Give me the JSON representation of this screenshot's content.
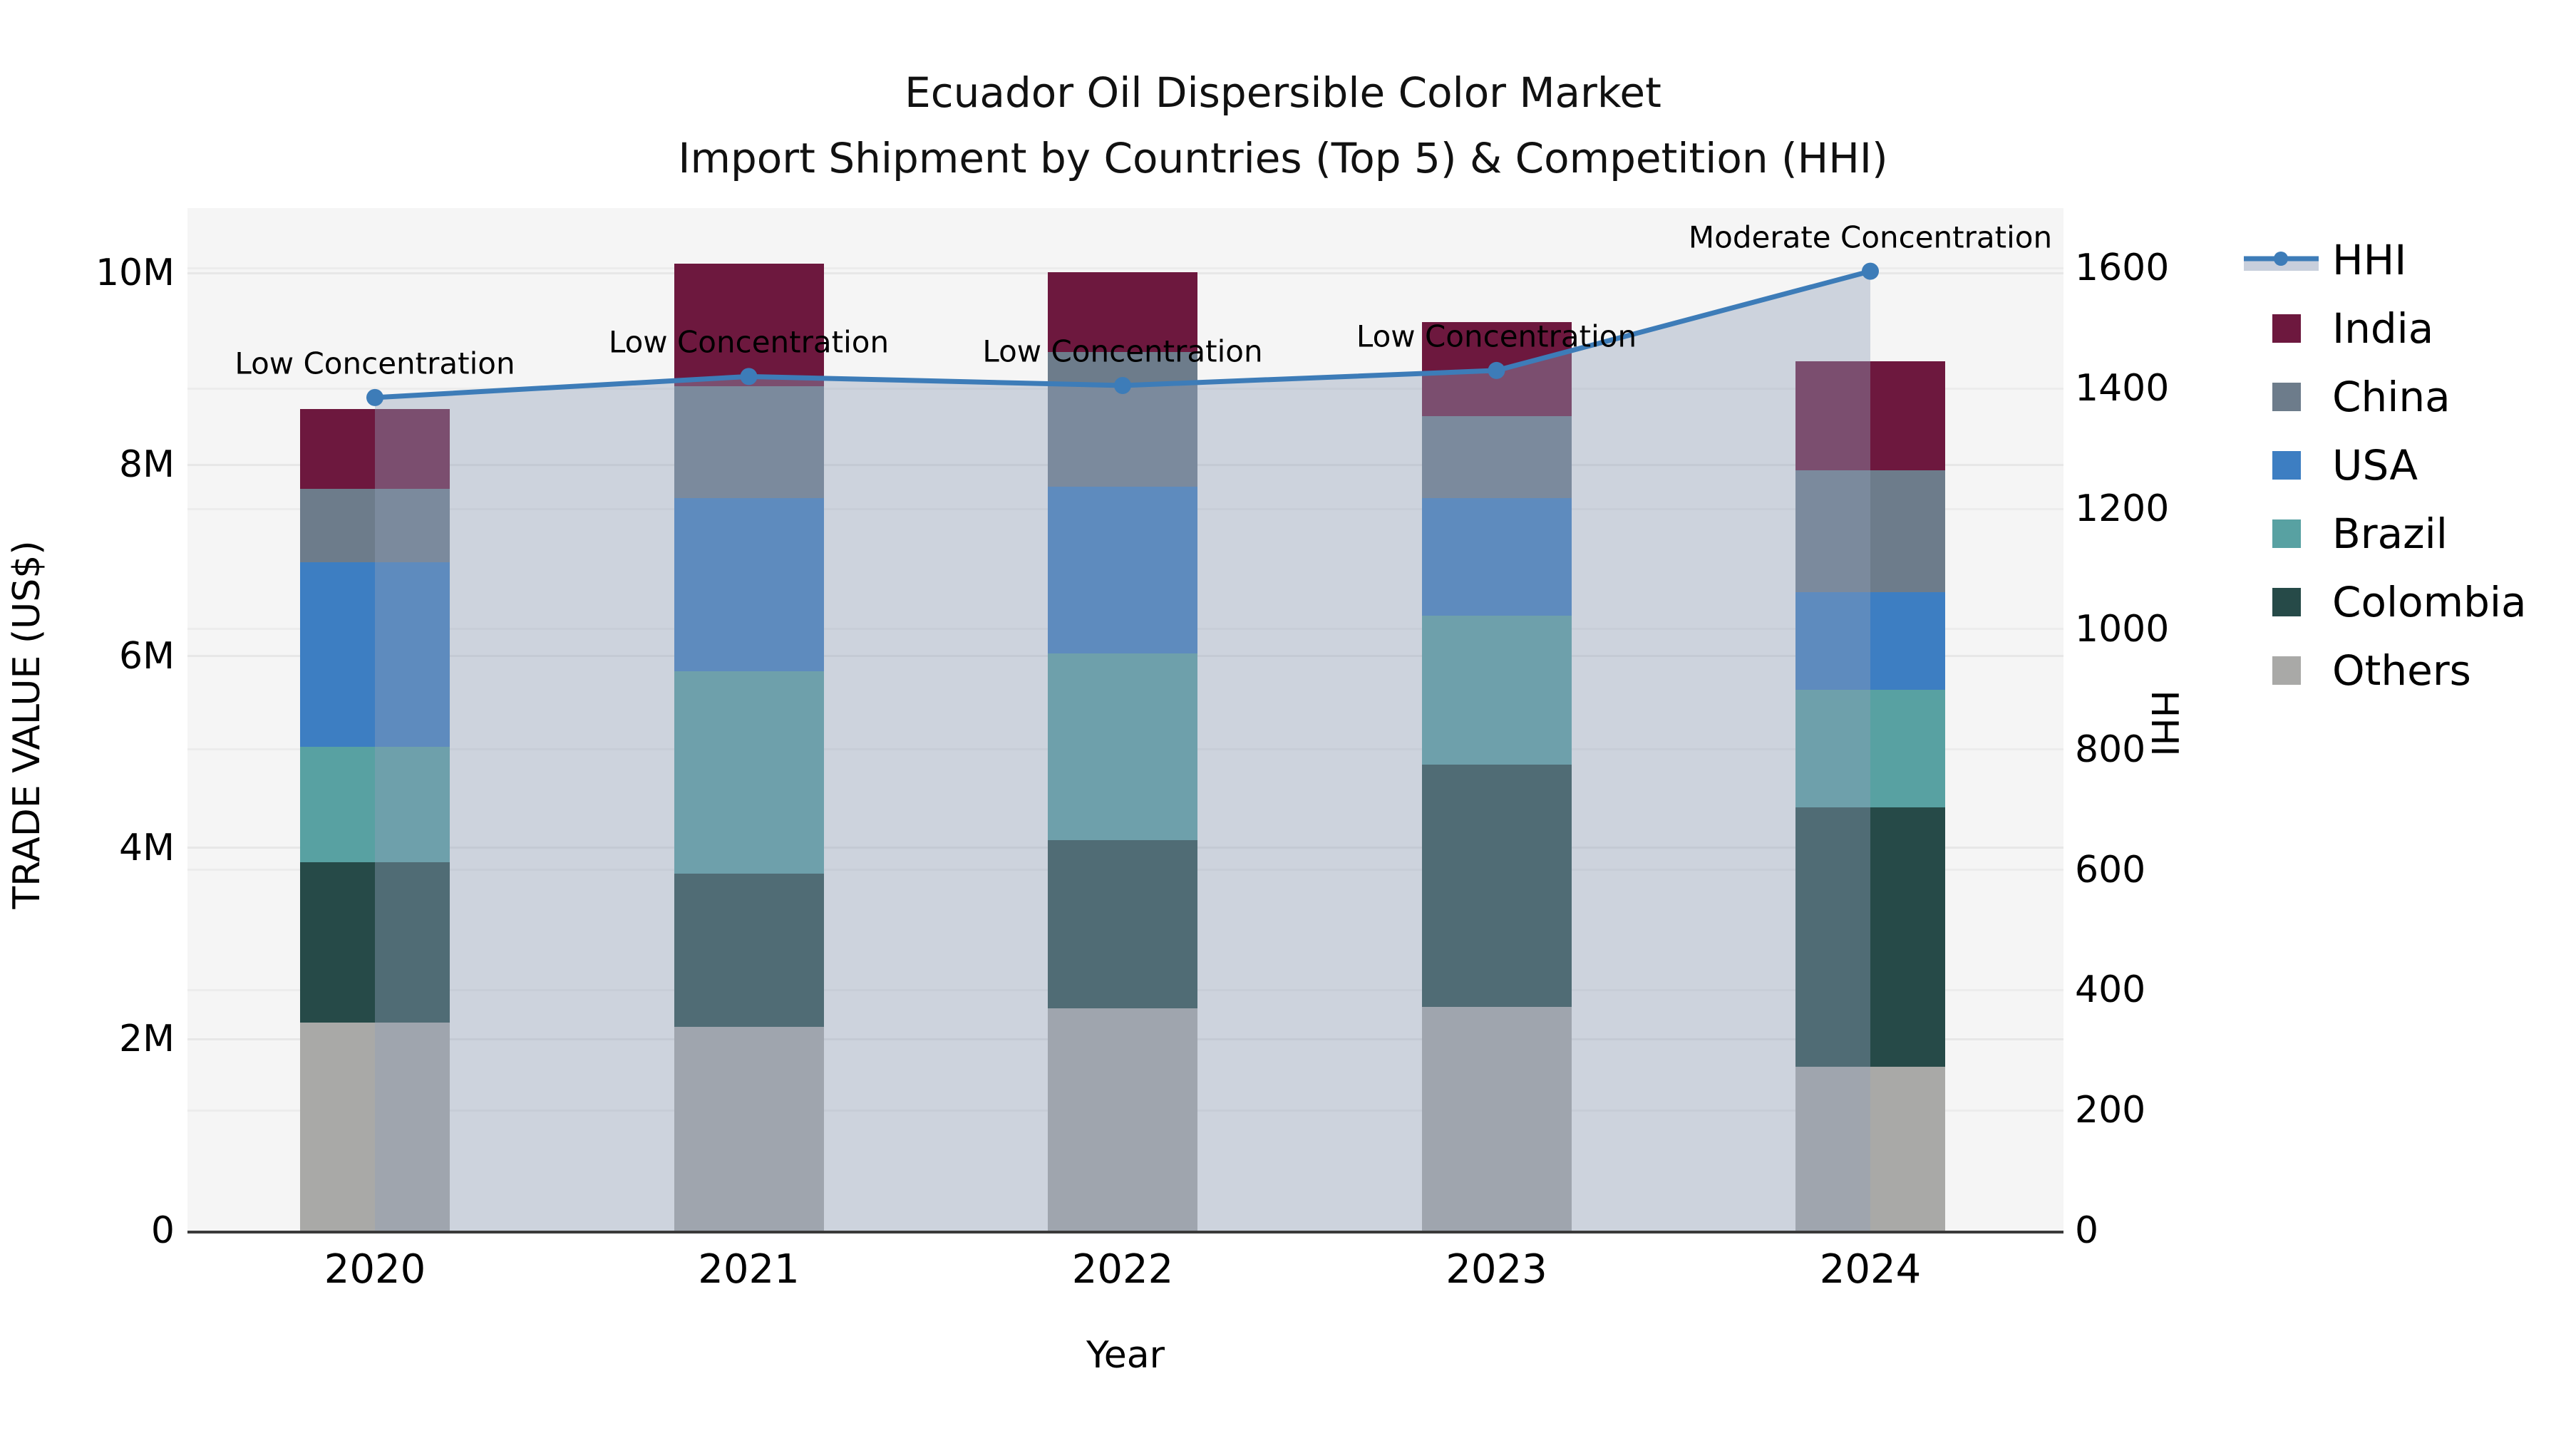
{
  "title": {
    "line1": "Ecuador Oil Dispersible Color Market",
    "line2": "Import Shipment by Countries (Top 5) & Competition (HHI)"
  },
  "axes": {
    "x": {
      "label": "Year",
      "categories": [
        "2020",
        "2021",
        "2022",
        "2023",
        "2024"
      ]
    },
    "y_left": {
      "label": "TRADE VALUE (US$)",
      "tick_labels": [
        "0",
        "2M",
        "4M",
        "6M",
        "8M",
        "10M"
      ],
      "tick_values_millions": [
        0,
        2,
        4,
        6,
        8,
        10
      ],
      "axis_max_millions": 10.68
    },
    "y_right": {
      "label": "HHI",
      "tick_values": [
        0,
        200,
        400,
        600,
        800,
        1000,
        1200,
        1400,
        1600
      ],
      "axis_max": 1700
    }
  },
  "chart_data": {
    "type": "bar",
    "subtype": "stacked-bars-with-dual-axis-line",
    "title": "Ecuador Oil Dispersible Color Market — Import Shipment by Countries (Top 5) & Competition (HHI)",
    "xlabel": "Year",
    "ylabel_left": "TRADE VALUE (US$)",
    "ylabel_right": "HHI",
    "categories": [
      "2020",
      "2021",
      "2022",
      "2023",
      "2024"
    ],
    "bar_series": [
      {
        "name": "India",
        "color": "#6d183e",
        "values_millions": [
          0.83,
          1.28,
          0.83,
          0.98,
          1.14
        ]
      },
      {
        "name": "China",
        "color": "#6d7c8b",
        "values_millions": [
          0.77,
          1.17,
          1.41,
          0.86,
          1.27
        ]
      },
      {
        "name": "USA",
        "color": "#3d7ec2",
        "values_millions": [
          1.93,
          1.81,
          1.74,
          1.23,
          1.02
        ]
      },
      {
        "name": "Brazil",
        "color": "#58a1a2",
        "values_millions": [
          1.2,
          2.11,
          1.95,
          1.55,
          1.23
        ]
      },
      {
        "name": "Colombia",
        "color": "#264a48",
        "values_millions": [
          1.68,
          1.6,
          1.76,
          2.53,
          2.71
        ]
      },
      {
        "name": "Others",
        "color": "#a9a9a7",
        "values_millions": [
          2.17,
          2.13,
          2.32,
          2.34,
          1.71
        ]
      }
    ],
    "bar_totals_millions": [
      8.58,
      10.1,
      10.01,
      9.49,
      9.08
    ],
    "line_series": {
      "name": "HHI",
      "color": "#3d7cb8",
      "area_fill_color": "rgba(145,160,185,0.4)",
      "values": [
        1385,
        1420,
        1405,
        1430,
        1595
      ]
    },
    "annotations": [
      {
        "category": "2020",
        "text": "Low Concentration"
      },
      {
        "category": "2021",
        "text": "Low Concentration"
      },
      {
        "category": "2022",
        "text": "Low Concentration"
      },
      {
        "category": "2023",
        "text": "Low Concentration"
      },
      {
        "category": "2024",
        "text": "Moderate Concentration"
      }
    ],
    "layout_hints": {
      "legend_position": "outside-right",
      "grid": "horizontal-both-axes",
      "plot_background": "#f5f5f5",
      "stack_order_bottom_to_top": [
        "Others",
        "Colombia",
        "Brazil",
        "USA",
        "China",
        "India"
      ]
    }
  },
  "legend": {
    "items": [
      {
        "label": "HHI",
        "type": "line",
        "color": "#3d7cb8"
      },
      {
        "label": "India",
        "type": "swatch",
        "color": "#6d183e"
      },
      {
        "label": "China",
        "type": "swatch",
        "color": "#6d7c8b"
      },
      {
        "label": "USA",
        "type": "swatch",
        "color": "#3d7ec2"
      },
      {
        "label": "Brazil",
        "type": "swatch",
        "color": "#58a1a2"
      },
      {
        "label": "Colombia",
        "type": "swatch",
        "color": "#264a48"
      },
      {
        "label": "Others",
        "type": "swatch",
        "color": "#a9a9a7"
      }
    ]
  }
}
